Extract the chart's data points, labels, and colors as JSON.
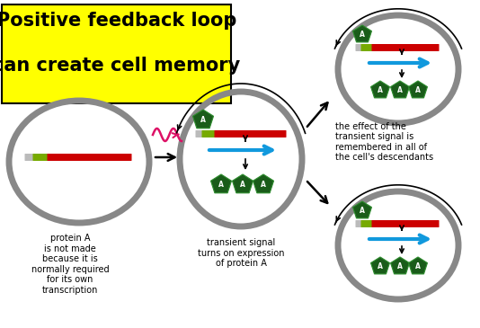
{
  "title_line1": "Positive feedback loop",
  "title_line2": "can create cell memory",
  "title_bg": "#ffff00",
  "title_fontsize": 15,
  "title_fontweight": "bold",
  "bg_color": "#ffffff",
  "cell_edge_color": "#888888",
  "cell_linewidth": 5,
  "dna_red": "#cc0000",
  "dna_green": "#77aa00",
  "dna_gray": "#bbbbbb",
  "arrow_blue": "#1199dd",
  "protein_green_dark": "#1a5c1a",
  "protein_green_light": "#2d8c2d",
  "text_color": "#000000",
  "signal_color": "#dd1166",
  "label1": "protein A\nis not made\nbecause it is\nnormally required\nfor its own\ntranscription",
  "label2": "transient signal\nturns on expression\nof protein A",
  "label3": "the effect of the\ntransient signal is\nremembered in all of\nthe cell's descendants"
}
